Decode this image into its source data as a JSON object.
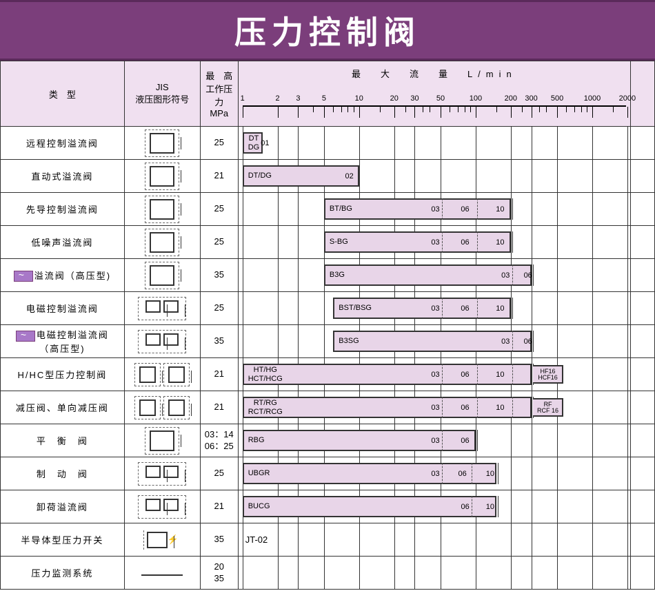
{
  "title": "压力控制阀",
  "headers": {
    "type": "类　型",
    "jis": "JIS\n液压图形符号",
    "pressure": "最　高\n工作压力\nMPa",
    "flow": "最　大　流　量　L/min"
  },
  "flow_scale": {
    "ticks": [
      1,
      2,
      3,
      5,
      10,
      20,
      30,
      50,
      100,
      200,
      300,
      500,
      1000,
      2000
    ],
    "log_min": 0,
    "log_max": 3.3
  },
  "colors": {
    "banner_bg": "#7b3e7b",
    "banner_fg": "#ffffff",
    "header_bg": "#f0e0f0",
    "bar_fill": "#e8d5e8",
    "border": "#333333",
    "flag_bg": "#a878c8"
  },
  "rows": [
    {
      "type": "远程控制溢流阀",
      "flag": false,
      "jis": "sym_dashed",
      "press": "25",
      "bar": {
        "from": 1,
        "to": 1.5,
        "labelLines": [
          "DT",
          "DG"
        ],
        "afterLabel": "01",
        "segs": []
      }
    },
    {
      "type": "直动式溢流阀",
      "flag": false,
      "jis": "sym_dashed",
      "press": "21",
      "bar": {
        "from": 1,
        "to": 10,
        "label": "DT/DG",
        "endLabel": "02",
        "segs": []
      }
    },
    {
      "type": "先导控制溢流阀",
      "flag": false,
      "jis": "sym_dashed",
      "press": "25",
      "bar": {
        "from": 5,
        "to": 200,
        "label": "BT/BG",
        "segs": [
          {
            "at": 50,
            "txt": "03"
          },
          {
            "at": 100,
            "txt": "06"
          },
          {
            "at": 200,
            "txt": "10",
            "solid": true
          }
        ]
      }
    },
    {
      "type": "低噪声溢流阀",
      "flag": false,
      "jis": "sym_dashed",
      "press": "25",
      "bar": {
        "from": 5,
        "to": 200,
        "label": "S-BG",
        "segs": [
          {
            "at": 50,
            "txt": "03"
          },
          {
            "at": 100,
            "txt": "06"
          },
          {
            "at": 200,
            "txt": "10",
            "solid": true
          }
        ]
      }
    },
    {
      "type": "溢流阀（高压型)",
      "flag": true,
      "jis": "sym_dashed",
      "press": "35",
      "bar": {
        "from": 5,
        "to": 300,
        "label": "B3G",
        "segs": [
          {
            "at": 200,
            "txt": "03"
          },
          {
            "at": 300,
            "txt": "06",
            "solid": true
          }
        ]
      }
    },
    {
      "type": "电磁控制溢流阀",
      "flag": false,
      "jis": "sym_complex",
      "press": "25",
      "bar": {
        "from": 6,
        "to": 200,
        "label": "BST/BSG",
        "segs": [
          {
            "at": 50,
            "txt": "03"
          },
          {
            "at": 100,
            "txt": "06"
          },
          {
            "at": 200,
            "txt": "10",
            "solid": true
          }
        ]
      }
    },
    {
      "type": "电磁控制溢流阀\n（高压型)",
      "flag": true,
      "jis": "sym_complex",
      "press": "35",
      "bar": {
        "from": 6,
        "to": 300,
        "label": "B3SG",
        "segs": [
          {
            "at": 200,
            "txt": "03"
          },
          {
            "at": 300,
            "txt": "06",
            "solid": true
          }
        ]
      }
    },
    {
      "type": "H/HC型压力控制阀",
      "flag": false,
      "jis": "sym_double",
      "press": "21",
      "bar": {
        "from": 1,
        "to": 300,
        "labelLines": [
          "HT/HG",
          "HCT/HCG"
        ],
        "segs": [
          {
            "at": 50,
            "txt": "03"
          },
          {
            "at": 100,
            "txt": "06"
          },
          {
            "at": 200,
            "txt": "10"
          },
          {
            "at": 300,
            "txt": "",
            "solid": true
          }
        ],
        "extra": [
          "HF16",
          "HCF16"
        ]
      }
    },
    {
      "type": "减压阀、单向减压阀",
      "flag": false,
      "jis": "sym_double",
      "press": "21",
      "bar": {
        "from": 1,
        "to": 300,
        "labelLines": [
          "RT/RG",
          "RCT/RCG"
        ],
        "segs": [
          {
            "at": 50,
            "txt": "03"
          },
          {
            "at": 100,
            "txt": "06"
          },
          {
            "at": 200,
            "txt": "10"
          },
          {
            "at": 300,
            "txt": "",
            "solid": true
          }
        ],
        "extra": [
          "RF",
          "RCF 16"
        ]
      }
    },
    {
      "type": "平　衡　阀",
      "flag": false,
      "jis": "sym_dashed",
      "press": "03：14\n06：25",
      "bar": {
        "from": 1,
        "to": 100,
        "label": "RBG",
        "segs": [
          {
            "at": 50,
            "txt": "03"
          },
          {
            "at": 100,
            "txt": "06",
            "solid": true
          }
        ]
      }
    },
    {
      "type": "制　动　阀",
      "flag": false,
      "jis": "sym_complex",
      "press": "25",
      "bar": {
        "from": 1,
        "to": 150,
        "label": "UBGR",
        "segs": [
          {
            "at": 50,
            "txt": "03"
          },
          {
            "at": 90,
            "txt": "06"
          },
          {
            "at": 150,
            "txt": "10",
            "solid": true
          }
        ]
      }
    },
    {
      "type": "卸荷溢流阀",
      "flag": false,
      "jis": "sym_complex",
      "press": "21",
      "bar": {
        "from": 1,
        "to": 150,
        "label": "BUCG",
        "segs": [
          {
            "at": 90,
            "txt": "06"
          },
          {
            "at": 150,
            "txt": "10",
            "solid": true
          }
        ]
      }
    },
    {
      "type": "半导体型压力开关",
      "flag": false,
      "jis": "sym_switch",
      "press": "35",
      "text": "JT-02"
    },
    {
      "type": "压力监测系统",
      "flag": false,
      "jis": "line",
      "press": "20\n35",
      "text": ""
    }
  ]
}
